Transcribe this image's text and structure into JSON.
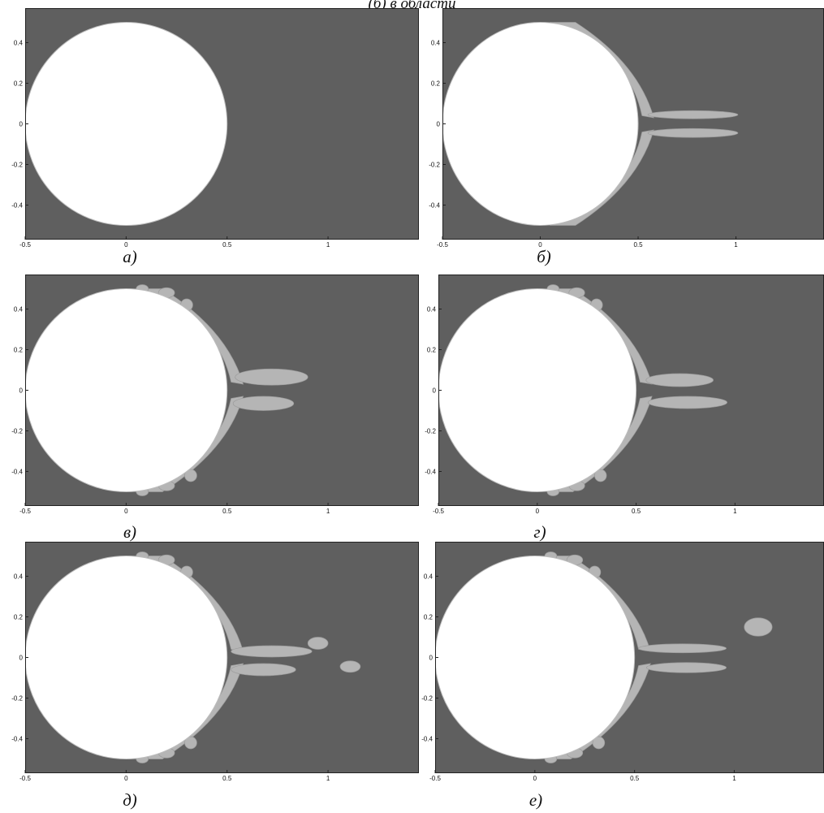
{
  "figure": {
    "top_caption": "(б) в области",
    "background_color": "#5f5f5f",
    "body_color": "#ffffff",
    "wake_color": "#b5b5b5"
  },
  "chart_data": [
    {
      "type": "scatter",
      "label": "а)",
      "xlim": [
        -0.5,
        1.45
      ],
      "ylim": [
        -0.57,
        0.57
      ],
      "xticks": [
        "-0.5",
        "0",
        "0.5",
        "1"
      ],
      "yticks": [
        "0.4",
        "0.2",
        "0",
        "-0.2",
        "-0.4"
      ],
      "wake_stage": 0
    },
    {
      "type": "scatter",
      "label": "б)",
      "xlim": [
        -0.5,
        1.45
      ],
      "ylim": [
        -0.57,
        0.57
      ],
      "xticks": [
        "-0.5",
        "0",
        "0.5",
        "1"
      ],
      "yticks": [
        "0.4",
        "0.2",
        "0",
        "-0.2",
        "-0.4"
      ],
      "wake_stage": 1
    },
    {
      "type": "scatter",
      "label": "в)",
      "xlim": [
        -0.5,
        1.45
      ],
      "ylim": [
        -0.57,
        0.57
      ],
      "xticks": [
        "-0.5",
        "0",
        "0.5",
        "1"
      ],
      "yticks": [
        "0.4",
        "0.2",
        "0",
        "-0.2",
        "-0.4"
      ],
      "wake_stage": 2
    },
    {
      "type": "scatter",
      "label": "г)",
      "xlim": [
        -0.5,
        1.45
      ],
      "ylim": [
        -0.57,
        0.57
      ],
      "xticks": [
        "-0.5",
        "0",
        "0.5",
        "1"
      ],
      "yticks": [
        "0.4",
        "0.2",
        "0",
        "-0.2",
        "-0.4"
      ],
      "wake_stage": 3
    },
    {
      "type": "scatter",
      "label": "д)",
      "xlim": [
        -0.5,
        1.45
      ],
      "ylim": [
        -0.57,
        0.57
      ],
      "xticks": [
        "-0.5",
        "0",
        "0.5",
        "1"
      ],
      "yticks": [
        "0.4",
        "0.2",
        "0",
        "-0.2",
        "-0.4"
      ],
      "wake_stage": 4
    },
    {
      "type": "scatter",
      "label": "е)",
      "xlim": [
        -0.5,
        1.45
      ],
      "ylim": [
        -0.57,
        0.57
      ],
      "xticks": [
        "-0.5",
        "0",
        "0.5",
        "1"
      ],
      "yticks": [
        "0.4",
        "0.2",
        "0",
        "-0.2",
        "-0.4"
      ],
      "wake_stage": 5
    }
  ]
}
